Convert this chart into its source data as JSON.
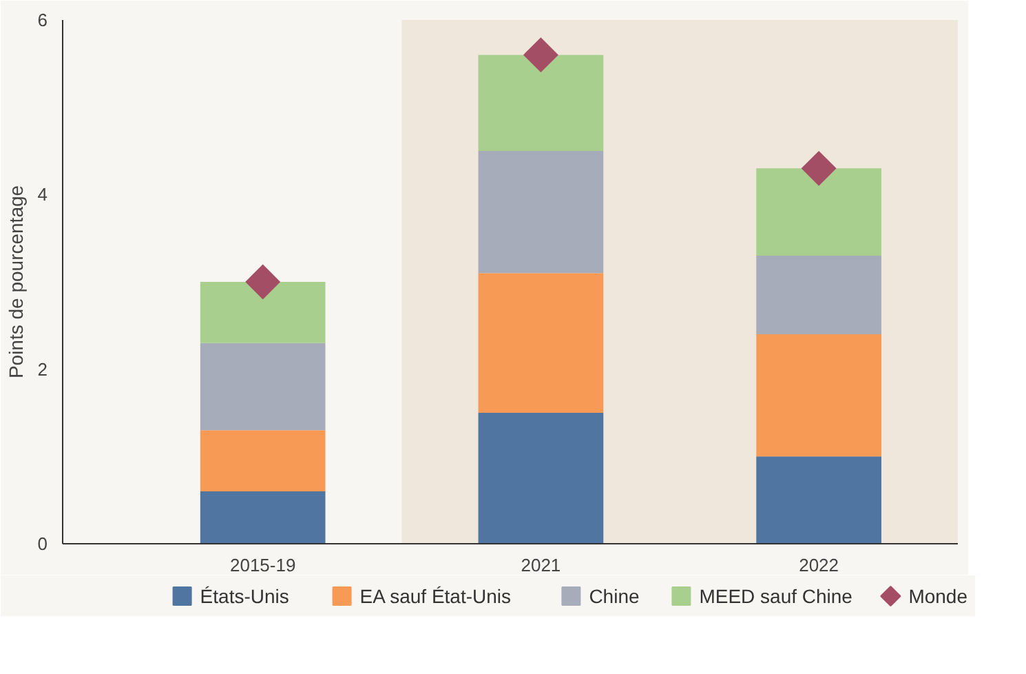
{
  "chart_data": {
    "type": "bar",
    "stacked": true,
    "ylabel": "Points de pourcentage",
    "categories": [
      "2015-19",
      "2021",
      "2022"
    ],
    "series": [
      {
        "name": "États-Unis",
        "color": "#4f75a0",
        "values": [
          0.6,
          1.5,
          1.0
        ]
      },
      {
        "name": "EA sauf État-Unis",
        "color": "#f69a56",
        "values": [
          0.7,
          1.6,
          1.4
        ]
      },
      {
        "name": "Chine",
        "color": "#a6acba",
        "values": [
          1.0,
          1.4,
          0.9
        ]
      },
      {
        "name": "MEED sauf Chine",
        "color": "#a9cf8f",
        "values": [
          0.7,
          1.1,
          1.0
        ]
      },
      {
        "name": "Monde",
        "type": "scatter",
        "marker": "diamond",
        "color": "#a34e64",
        "values": [
          3.0,
          5.6,
          4.3
        ]
      }
    ],
    "ylim": [
      0,
      6
    ],
    "yticks": [
      0,
      2,
      4,
      6
    ],
    "grid": false,
    "legend": "bottom",
    "bands": [
      {
        "axis": "x",
        "from": "2021",
        "to": "2022",
        "color": "#efe6dc"
      }
    ]
  }
}
